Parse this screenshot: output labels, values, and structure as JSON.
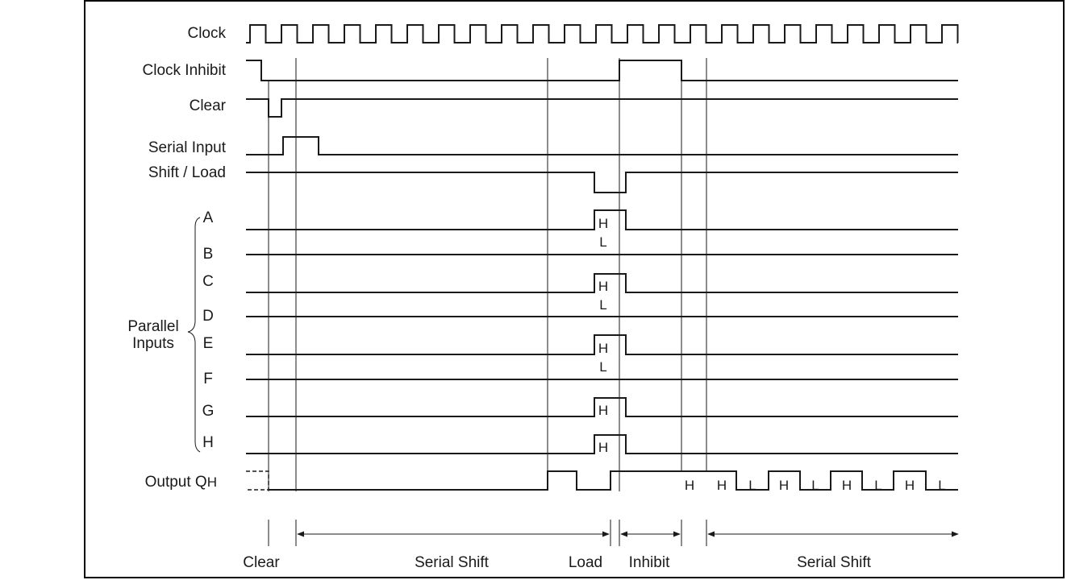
{
  "signals": {
    "clock": "Clock",
    "clock_inhibit": "Clock Inhibit",
    "clear": "Clear",
    "serial_input": "Serial Input",
    "shift_load": "Shift / Load",
    "output_q": "Output Q",
    "output_q_sub": "H"
  },
  "parallel": {
    "label_line1": "Parallel",
    "label_line2": "Inputs",
    "inputs": [
      {
        "name": "A",
        "value": "H"
      },
      {
        "name": "B",
        "value": "L"
      },
      {
        "name": "C",
        "value": "H"
      },
      {
        "name": "D",
        "value": "L"
      },
      {
        "name": "E",
        "value": "H"
      },
      {
        "name": "F",
        "value": "L"
      },
      {
        "name": "G",
        "value": "H"
      },
      {
        "name": "H",
        "value": "H"
      }
    ]
  },
  "output_bits": [
    "H",
    "H",
    "L",
    "H",
    "L",
    "H",
    "L",
    "H",
    "L"
  ],
  "phases": {
    "clear": "Clear",
    "serial_shift_1": "Serial Shift",
    "load": "Load",
    "inhibit": "Inhibit",
    "serial_shift_2": "Serial Shift"
  }
}
